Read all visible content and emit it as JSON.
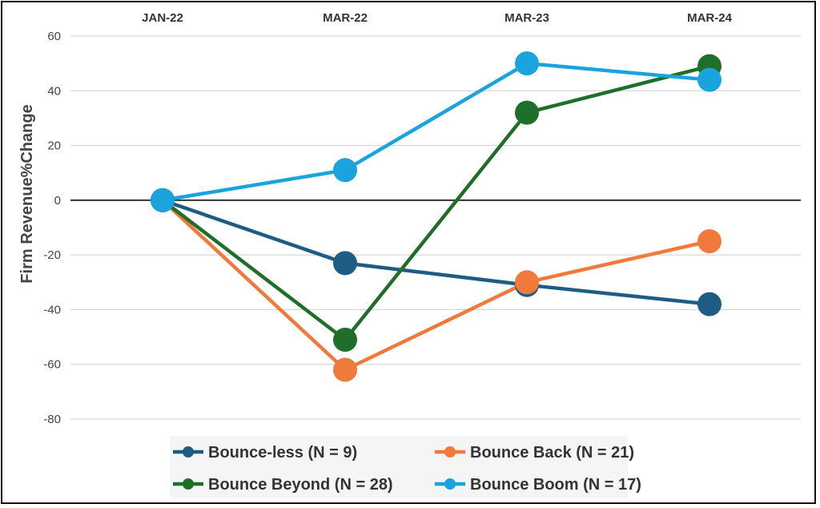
{
  "chart_data": {
    "type": "line",
    "title": "",
    "xlabel": "",
    "ylabel": "Firm Revenue%Change",
    "categories": [
      "JAN-22",
      "MAR-22",
      "MAR-23",
      "MAR-24"
    ],
    "ylim": [
      -80,
      60
    ],
    "yticks": [
      60,
      40,
      20,
      0,
      -20,
      -40,
      -60,
      -80
    ],
    "grid": true,
    "legend_position": "bottom",
    "series": [
      {
        "name": "Bounce-less (N = 9)",
        "color": "#1d5d84",
        "values": [
          0,
          -23,
          -31,
          -38
        ]
      },
      {
        "name": "Bounce Back (N = 21)",
        "color": "#ef7a3c",
        "values": [
          0,
          -62,
          -30,
          -15
        ]
      },
      {
        "name": "Bounce Beyond (N = 28)",
        "color": "#1f6f2a",
        "values": [
          0,
          -51,
          32,
          49
        ]
      },
      {
        "name": "Bounce Boom (N = 17)",
        "color": "#1aa3dc",
        "values": [
          0,
          11,
          50,
          44
        ]
      }
    ]
  }
}
